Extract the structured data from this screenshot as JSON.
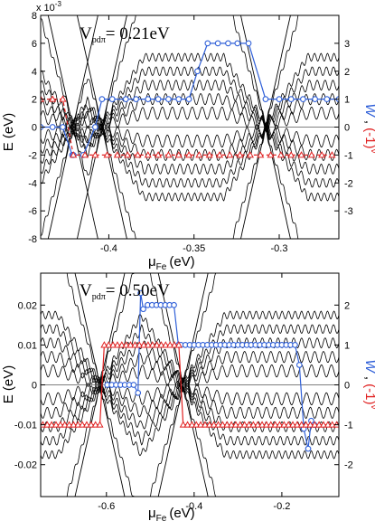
{
  "chart_data": [
    {
      "type": "line",
      "panel": "top",
      "annotation": {
        "v": "V",
        "sub": "pdπ",
        "value": "= 0.21eV"
      },
      "xlabel": {
        "main": "μ",
        "sub": "Fe",
        "unit": "(eV)"
      },
      "ylabel": "E (eV)",
      "y_exponent": "x 10",
      "y_exponent_power": "-3",
      "xlim": [
        -0.44,
        -0.265
      ],
      "ylim": [
        -8,
        8
      ],
      "xticks": [
        -0.4,
        -0.35,
        -0.3
      ],
      "xtick_labels": [
        "-0.4",
        "-0.35",
        "-0.3"
      ],
      "yticks": [
        -8,
        -6,
        -4,
        -2,
        0,
        2,
        4,
        6,
        8
      ],
      "ytick_labels": [
        "-8",
        "-6",
        "-4",
        "-2",
        "0",
        "2",
        "4",
        "6",
        "8"
      ],
      "y2lim": [
        -4,
        4
      ],
      "y2ticks": [
        -3,
        -2,
        -1,
        0,
        1,
        2,
        3
      ],
      "y2tick_labels": [
        "-3",
        "-2",
        "-1",
        "0",
        "1",
        "2",
        "3"
      ],
      "gap_closings": [
        -0.421,
        -0.404,
        -0.308
      ],
      "series": [
        {
          "name": "W",
          "axis": "right",
          "color": "#3060d8",
          "marker": "circle",
          "style": "solid",
          "x": [
            -0.44,
            -0.433,
            -0.427,
            -0.4215,
            -0.4208,
            -0.415,
            -0.408,
            -0.404,
            -0.398,
            -0.39,
            -0.384,
            -0.377,
            -0.371,
            -0.365,
            -0.359,
            -0.353,
            -0.348,
            -0.342,
            -0.336,
            -0.33,
            -0.3245,
            -0.318,
            -0.308,
            -0.3,
            -0.293,
            -0.286,
            -0.279,
            -0.272,
            -0.265
          ],
          "y": [
            0,
            0,
            0,
            -1,
            -1,
            -1,
            0,
            1,
            1,
            1,
            1,
            1,
            1,
            1,
            1,
            1,
            2,
            3,
            3,
            3,
            3,
            3,
            1,
            1,
            1,
            1,
            1,
            1,
            1
          ]
        },
        {
          "name": "(-1)^ν",
          "axis": "right",
          "color": "#e02020",
          "marker": "triangle",
          "style": "dashed",
          "x": [
            -0.44,
            -0.433,
            -0.427,
            -0.4208,
            -0.414,
            -0.408,
            -0.401,
            -0.395,
            -0.389,
            -0.383,
            -0.377,
            -0.371,
            -0.365,
            -0.359,
            -0.353,
            -0.347,
            -0.341,
            -0.335,
            -0.329,
            -0.323,
            -0.317,
            -0.311,
            -0.305,
            -0.299,
            -0.293,
            -0.287,
            -0.281,
            -0.275,
            -0.269
          ],
          "y": [
            1,
            1,
            1,
            -1,
            -1,
            -1,
            -1,
            -1,
            -1,
            -1,
            -1,
            -1,
            -1,
            -1,
            -1,
            -1,
            -1,
            -1,
            -1,
            -1,
            -1,
            -1,
            -1,
            -1,
            -1,
            -1,
            -1,
            -1,
            -1
          ]
        }
      ]
    },
    {
      "type": "line",
      "panel": "bottom",
      "annotation": {
        "v": "V",
        "sub": "pdπ",
        "value": "= 0.50eV"
      },
      "xlabel": {
        "main": "μ",
        "sub": "Fe",
        "unit": "(eV)"
      },
      "ylabel": "E (eV)",
      "xlim": [
        -0.75,
        -0.07
      ],
      "ylim": [
        -0.028,
        0.028
      ],
      "xticks": [
        -0.6,
        -0.4,
        -0.2
      ],
      "xtick_labels": [
        "-0.6",
        "-0.4",
        "-0.2"
      ],
      "yticks": [
        -0.02,
        -0.01,
        0,
        0.01,
        0.02
      ],
      "ytick_labels": [
        "-0.02",
        "-0.01",
        "0",
        "0.01",
        "0.02"
      ],
      "y2lim": [
        -2.8,
        2.8
      ],
      "y2ticks": [
        -2,
        -1,
        0,
        1,
        2
      ],
      "y2tick_labels": [
        "-2",
        "-1",
        "0",
        "1",
        "2"
      ],
      "gap_closings": [
        -0.615,
        -0.425
      ],
      "series": [
        {
          "name": "W",
          "axis": "right",
          "color": "#3060d8",
          "marker": "circle",
          "style": "solid",
          "x": [
            -0.598,
            -0.588,
            -0.578,
            -0.568,
            -0.558,
            -0.548,
            -0.538,
            -0.528,
            -0.522,
            -0.516,
            -0.506,
            -0.496,
            -0.486,
            -0.476,
            -0.466,
            -0.456,
            -0.446,
            -0.436,
            -0.43,
            -0.42,
            -0.41,
            -0.4,
            -0.39,
            -0.38,
            -0.37,
            -0.36,
            -0.35,
            -0.34,
            -0.33,
            -0.32,
            -0.31,
            -0.3,
            -0.29,
            -0.28,
            -0.27,
            -0.26,
            -0.25,
            -0.24,
            -0.23,
            -0.22,
            -0.21,
            -0.2,
            -0.19,
            -0.18,
            -0.17,
            -0.16,
            -0.15,
            -0.14,
            -0.133,
            -0.126
          ],
          "y": [
            0,
            0,
            0,
            0,
            0,
            0,
            0,
            -0.2,
            2.3,
            1.9,
            2,
            2,
            2,
            2,
            2,
            2,
            2,
            1,
            1,
            1,
            1,
            1,
            1,
            1,
            1,
            1,
            1,
            1,
            1,
            1,
            1,
            1,
            1,
            1,
            1,
            1,
            1,
            1,
            1,
            1,
            1,
            1,
            1,
            1,
            1,
            0.5,
            -1.1,
            -1.6,
            -0.9,
            -1
          ]
        },
        {
          "name": "(-1)^ν",
          "axis": "right",
          "color": "#e02020",
          "marker": "triangle",
          "style": "solid",
          "x": [
            -0.745,
            -0.735,
            -0.725,
            -0.715,
            -0.705,
            -0.695,
            -0.685,
            -0.675,
            -0.665,
            -0.655,
            -0.645,
            -0.635,
            -0.625,
            -0.615,
            -0.605,
            -0.595,
            -0.585,
            -0.575,
            -0.565,
            -0.555,
            -0.545,
            -0.535,
            -0.525,
            -0.515,
            -0.505,
            -0.495,
            -0.485,
            -0.475,
            -0.465,
            -0.455,
            -0.445,
            -0.435,
            -0.425,
            -0.415,
            -0.405,
            -0.395,
            -0.385,
            -0.375,
            -0.365,
            -0.355,
            -0.345,
            -0.335,
            -0.325,
            -0.315,
            -0.305,
            -0.295,
            -0.285,
            -0.275,
            -0.265,
            -0.255,
            -0.245,
            -0.235,
            -0.225,
            -0.215,
            -0.205,
            -0.195,
            -0.185,
            -0.175,
            -0.165,
            -0.155,
            -0.145,
            -0.135,
            -0.125,
            -0.115,
            -0.105,
            -0.095,
            -0.085,
            -0.075
          ],
          "y": [
            -1,
            -1,
            -1,
            -1,
            -1,
            -1,
            -1,
            -1,
            -1,
            -1,
            -1,
            -1,
            -1,
            -1,
            1,
            1,
            1,
            1,
            1,
            1,
            1,
            1,
            1,
            1,
            1,
            1,
            1,
            1,
            1,
            1,
            1,
            1,
            -1,
            -1,
            -1,
            -1,
            -1,
            -1,
            -1,
            -1,
            -1,
            -1,
            -1,
            -1,
            -1,
            -1,
            -1,
            -1,
            -1,
            -1,
            -1,
            -1,
            -1,
            -1,
            -1,
            -1,
            -1,
            -1,
            -1,
            -1,
            -1,
            -1,
            -1,
            -1,
            -1,
            -1,
            -1,
            -1
          ]
        }
      ]
    }
  ],
  "right_axis_label": {
    "w": "W",
    "sep": " , ",
    "neg": "(-1)",
    "nu": "ν"
  },
  "colors": {
    "w": "#3060d8",
    "parity": "#e02020",
    "bands": "#000000"
  }
}
